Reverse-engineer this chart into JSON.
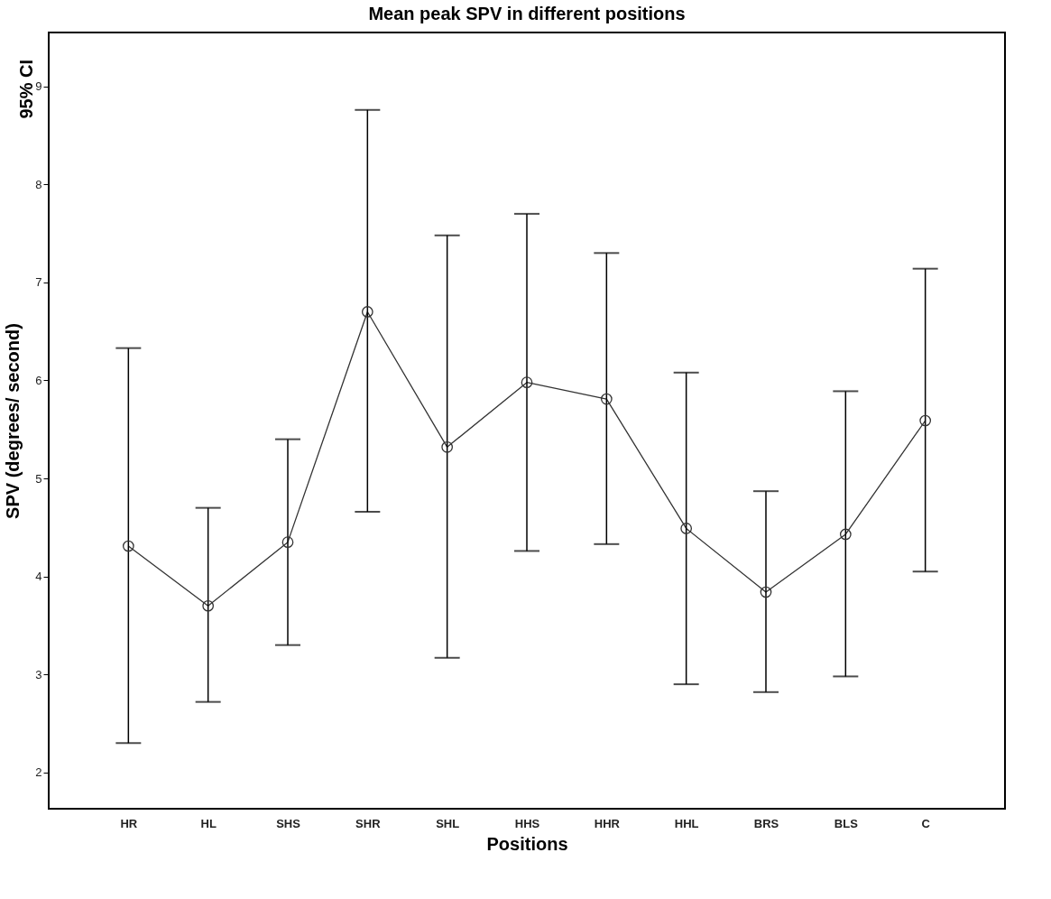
{
  "chart_data": {
    "type": "line",
    "title": "Mean peak SPV in different positions",
    "xlabel": "Positions",
    "ylabel": "SPV (degrees/ second)",
    "annotations": [
      "95% CI"
    ],
    "categories": [
      "HR",
      "HL",
      "SHS",
      "SHR",
      "SHL",
      "HHS",
      "HHR",
      "HHL",
      "BRS",
      "BLS",
      "C"
    ],
    "series": [
      {
        "color": "#333333",
        "values": [
          4.31,
          3.7,
          4.35,
          6.7,
          5.32,
          5.98,
          5.81,
          4.49,
          3.84,
          4.43,
          5.59
        ],
        "errors": [
          [
            2.3,
            6.33
          ],
          [
            2.72,
            4.7
          ],
          [
            3.3,
            5.4
          ],
          [
            4.66,
            8.76
          ],
          [
            3.17,
            7.48
          ],
          [
            4.26,
            7.7
          ],
          [
            4.33,
            7.3
          ],
          [
            2.9,
            6.08
          ],
          [
            2.82,
            4.87
          ],
          [
            2.98,
            5.89
          ],
          [
            4.05,
            7.14
          ]
        ]
      }
    ],
    "ylim": [
      1.63,
      9.55
    ],
    "yticks": [
      2,
      3,
      4,
      5,
      6,
      7,
      8,
      9
    ],
    "marker": "circle",
    "line_style": "solid"
  }
}
